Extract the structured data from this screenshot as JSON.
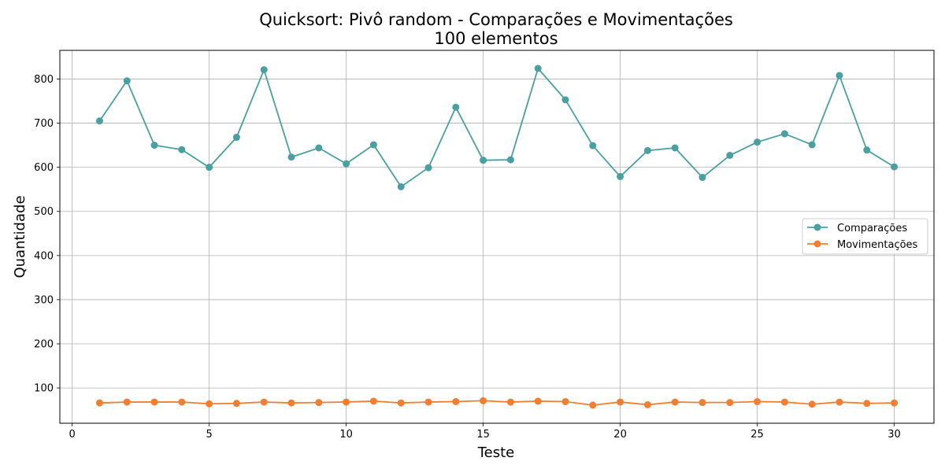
{
  "chart_data": {
    "type": "line",
    "title": "Quicksort: Pivô random - Comparações e Movimentações",
    "subtitle": "100 elementos",
    "xlabel": "Teste",
    "ylabel": "Quantidade",
    "xlim": [
      -0.45,
      31.45
    ],
    "ylim": [
      20,
      865
    ],
    "xticks": [
      0,
      5,
      10,
      15,
      20,
      25,
      30
    ],
    "yticks": [
      100,
      200,
      300,
      400,
      500,
      600,
      700,
      800
    ],
    "grid": true,
    "legend_position": "center-right",
    "x": [
      1,
      2,
      3,
      4,
      5,
      6,
      7,
      8,
      9,
      10,
      11,
      12,
      13,
      14,
      15,
      16,
      17,
      18,
      19,
      20,
      21,
      22,
      23,
      24,
      25,
      26,
      27,
      28,
      29,
      30
    ],
    "series": [
      {
        "name": "Comparações",
        "color": "#4a9fa0",
        "marker": "circle",
        "values": [
          705,
          796,
          650,
          640,
          600,
          668,
          821,
          623,
          644,
          608,
          651,
          556,
          599,
          736,
          616,
          617,
          824,
          753,
          649,
          579,
          638,
          644,
          577,
          627,
          657,
          676,
          651,
          808,
          639,
          601
        ]
      },
      {
        "name": "Movimentações",
        "color": "#f07f33",
        "marker": "circle",
        "values": [
          66,
          68,
          68,
          68,
          64,
          65,
          68,
          66,
          67,
          68,
          70,
          66,
          68,
          69,
          71,
          68,
          70,
          69,
          61,
          68,
          62,
          68,
          67,
          67,
          69,
          68,
          63,
          68,
          65,
          66
        ]
      }
    ]
  }
}
